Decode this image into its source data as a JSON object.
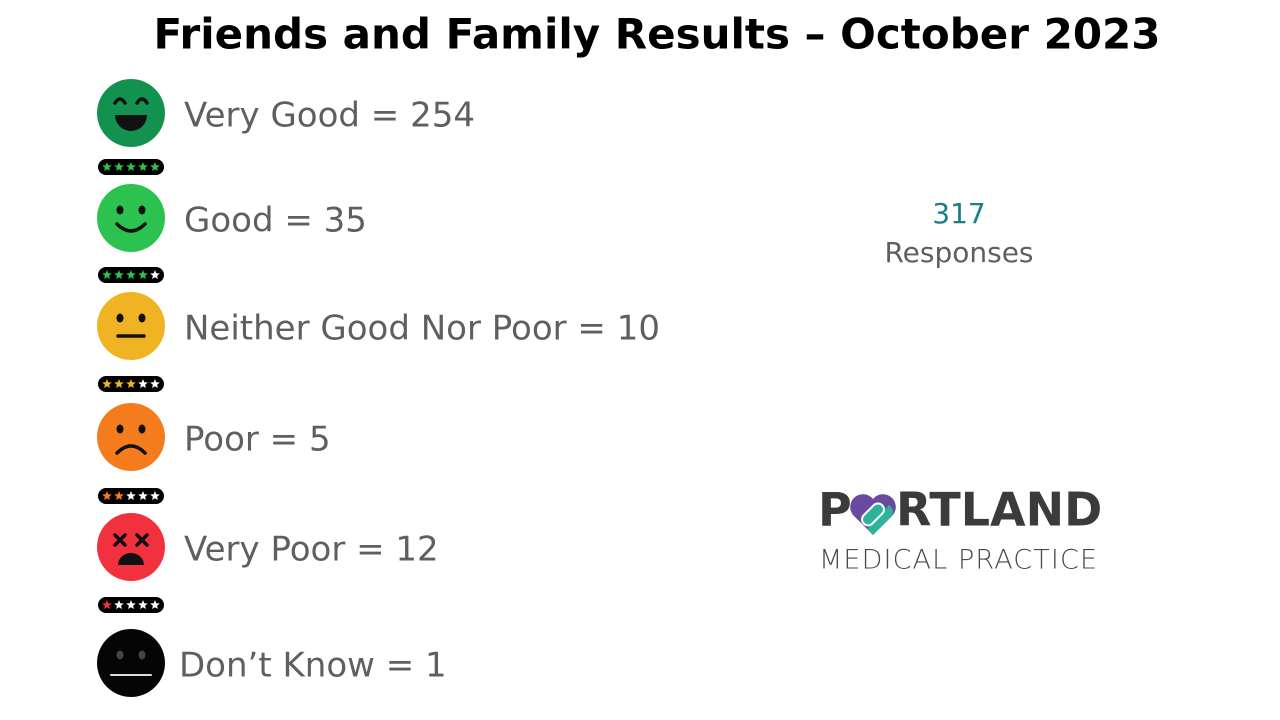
{
  "header": {
    "title": "Friends and Family Results – October 2023"
  },
  "rows": [
    {
      "text": "Very Good = 254"
    },
    {
      "text": "Good = 35"
    },
    {
      "text": "Neither Good Nor Poor = 10"
    },
    {
      "text": "Poor = 5"
    },
    {
      "text": "Very Poor = 12"
    },
    {
      "text": "Don’t Know = 1"
    }
  ],
  "summary": {
    "count": "317",
    "label": "Responses"
  },
  "logo": {
    "name_start": "P",
    "name_end": "RTLAND",
    "tagline": "MEDICAL PRACTICE"
  }
}
